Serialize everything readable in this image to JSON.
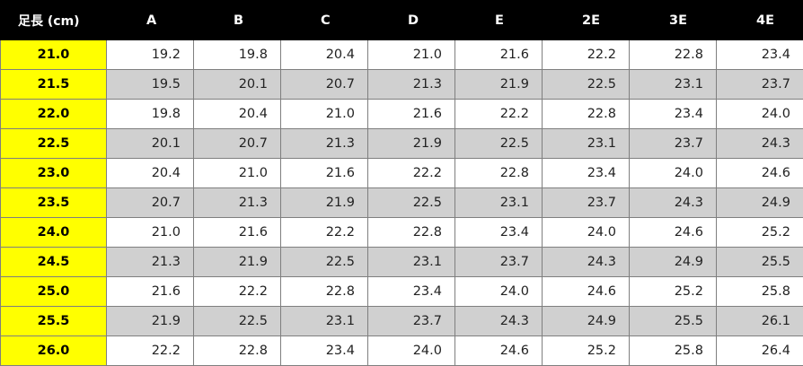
{
  "table": {
    "foot_header": "足長 (cm)",
    "width_headers": [
      "A",
      "B",
      "C",
      "D",
      "E",
      "2E",
      "3E",
      "4E"
    ],
    "rows": [
      {
        "foot": "21.0",
        "values": [
          "19.2",
          "19.8",
          "20.4",
          "21.0",
          "21.6",
          "22.2",
          "22.8",
          "23.4"
        ]
      },
      {
        "foot": "21.5",
        "values": [
          "19.5",
          "20.1",
          "20.7",
          "21.3",
          "21.9",
          "22.5",
          "23.1",
          "23.7"
        ]
      },
      {
        "foot": "22.0",
        "values": [
          "19.8",
          "20.4",
          "21.0",
          "21.6",
          "22.2",
          "22.8",
          "23.4",
          "24.0"
        ]
      },
      {
        "foot": "22.5",
        "values": [
          "20.1",
          "20.7",
          "21.3",
          "21.9",
          "22.5",
          "23.1",
          "23.7",
          "24.3"
        ]
      },
      {
        "foot": "23.0",
        "values": [
          "20.4",
          "21.0",
          "21.6",
          "22.2",
          "22.8",
          "23.4",
          "24.0",
          "24.6"
        ]
      },
      {
        "foot": "23.5",
        "values": [
          "20.7",
          "21.3",
          "21.9",
          "22.5",
          "23.1",
          "23.7",
          "24.3",
          "24.9"
        ]
      },
      {
        "foot": "24.0",
        "values": [
          "21.0",
          "21.6",
          "22.2",
          "22.8",
          "23.4",
          "24.0",
          "24.6",
          "25.2"
        ]
      },
      {
        "foot": "24.5",
        "values": [
          "21.3",
          "21.9",
          "22.5",
          "23.1",
          "23.7",
          "24.3",
          "24.9",
          "25.5"
        ]
      },
      {
        "foot": "25.0",
        "values": [
          "21.6",
          "22.2",
          "22.8",
          "23.4",
          "24.0",
          "24.6",
          "25.2",
          "25.8"
        ]
      },
      {
        "foot": "25.5",
        "values": [
          "21.9",
          "22.5",
          "23.1",
          "23.7",
          "24.3",
          "24.9",
          "25.5",
          "26.1"
        ]
      },
      {
        "foot": "26.0",
        "values": [
          "22.2",
          "22.8",
          "23.4",
          "24.0",
          "24.6",
          "25.2",
          "25.8",
          "26.4"
        ]
      }
    ]
  },
  "colors": {
    "header_bg": "#000000",
    "header_text": "#ffffff",
    "foot_column_bg": "#ffff00",
    "stripe_bg": "#d0d0d0",
    "row_bg": "#ffffff"
  }
}
